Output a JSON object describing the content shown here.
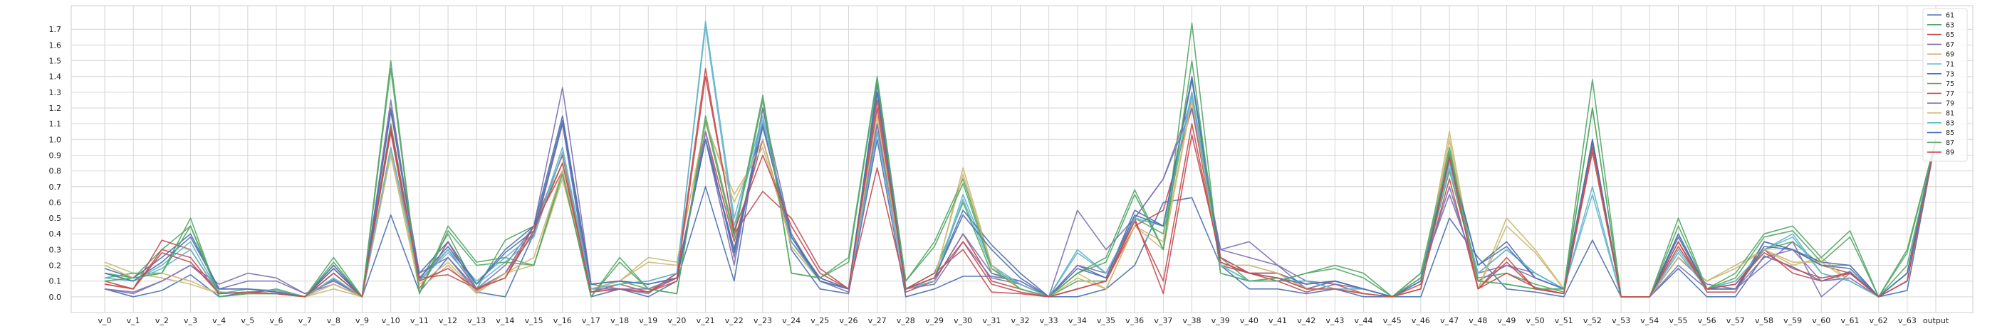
{
  "chart_data": {
    "type": "line",
    "title": "",
    "xlabel": "",
    "ylabel": "",
    "categories": [
      "v_0",
      "v_1",
      "v_2",
      "v_3",
      "v_4",
      "v_5",
      "v_6",
      "v_7",
      "v_8",
      "v_9",
      "v_10",
      "v_11",
      "v_12",
      "v_13",
      "v_14",
      "v_15",
      "v_16",
      "v_17",
      "v_18",
      "v_19",
      "v_20",
      "v_21",
      "v_22",
      "v_23",
      "v_24",
      "v_25",
      "v_26",
      "v_27",
      "v_28",
      "v_29",
      "v_30",
      "v_31",
      "v_32",
      "v_33",
      "v_34",
      "v_35",
      "v_36",
      "v_37",
      "v_38",
      "v_39",
      "v_40",
      "v_41",
      "v_42",
      "v_43",
      "v_44",
      "v_45",
      "v_46",
      "v_47",
      "v_48",
      "v_49",
      "v_50",
      "v_51",
      "v_52",
      "v_53",
      "v_54",
      "v_55",
      "v_56",
      "v_57",
      "v_58",
      "v_59",
      "v_60",
      "v_61",
      "v_62",
      "v_63",
      "output"
    ],
    "yticks": [
      0.0,
      0.1,
      0.2,
      0.3,
      0.4,
      0.5,
      0.6,
      0.7,
      0.8,
      0.9,
      1.0,
      1.1,
      1.2,
      1.3,
      1.4,
      1.5,
      1.6,
      1.7
    ],
    "ytick_labels": [
      "0.0",
      "0.1",
      "0.2",
      "0.3",
      "0.4",
      "0.5",
      "0.6",
      "0.7",
      "0.8",
      "0.9",
      "1.0",
      "1.1",
      "1.2",
      "1.3",
      "1.4",
      "1.5",
      "1.6",
      "1.7"
    ],
    "ylim": [
      -0.1,
      1.85
    ],
    "grid": true,
    "legend_position": "top-right",
    "series": [
      {
        "name": "61",
        "color": "#4c72b0",
        "values": [
          0.05,
          0.0,
          0.04,
          0.14,
          0.0,
          0.03,
          0.02,
          0.0,
          0.11,
          0.0,
          0.52,
          0.03,
          0.25,
          0.03,
          0.0,
          0.4,
          1.1,
          0.0,
          0.05,
          0.0,
          0.1,
          0.7,
          0.1,
          1.2,
          0.3,
          0.05,
          0.02,
          1.0,
          0.0,
          0.05,
          0.13,
          0.13,
          0.1,
          0.0,
          0.0,
          0.05,
          0.2,
          0.6,
          0.63,
          0.2,
          0.05,
          0.05,
          0.02,
          0.05,
          0.0,
          0.0,
          0.0,
          0.5,
          0.25,
          0.05,
          0.03,
          0.0,
          0.36,
          0.0,
          0.0,
          0.18,
          0.0,
          0.0,
          0.26,
          0.19,
          0.1,
          0.16,
          0.0,
          0.04,
          1.0
        ]
      },
      {
        "name": "63",
        "color": "#55a868",
        "values": [
          0.15,
          0.12,
          0.3,
          0.45,
          0.03,
          0.02,
          0.05,
          0.0,
          0.2,
          0.0,
          1.1,
          0.1,
          0.4,
          0.05,
          0.36,
          0.45,
          0.85,
          0.05,
          0.1,
          0.05,
          0.12,
          1.0,
          0.3,
          1.1,
          0.4,
          0.1,
          0.05,
          1.3,
          0.05,
          0.15,
          0.6,
          0.15,
          0.08,
          0.0,
          0.1,
          0.1,
          0.5,
          0.4,
          1.3,
          0.25,
          0.1,
          0.12,
          0.05,
          0.1,
          0.05,
          0.0,
          0.1,
          0.8,
          0.12,
          0.15,
          0.08,
          0.03,
          1.2,
          0.0,
          0.0,
          0.4,
          0.05,
          0.05,
          0.3,
          0.35,
          0.2,
          0.2,
          0.0,
          0.2,
          1.0
        ]
      },
      {
        "name": "65",
        "color": "#c44e52",
        "values": [
          0.1,
          0.05,
          0.36,
          0.3,
          0.02,
          0.03,
          0.04,
          0.0,
          0.15,
          0.0,
          1.05,
          0.05,
          0.35,
          0.04,
          0.15,
          0.45,
          0.9,
          0.03,
          0.08,
          0.03,
          0.1,
          1.05,
          0.35,
          1.0,
          0.35,
          0.12,
          0.05,
          1.2,
          0.03,
          0.1,
          0.4,
          0.1,
          0.05,
          0.0,
          0.05,
          0.1,
          0.45,
          0.55,
          1.2,
          0.2,
          0.15,
          0.1,
          0.03,
          0.08,
          0.02,
          0.0,
          0.08,
          0.75,
          0.05,
          0.15,
          0.06,
          0.02,
          1.0,
          0.0,
          0.0,
          0.35,
          0.03,
          0.03,
          0.35,
          0.3,
          0.2,
          0.15,
          0.0,
          0.1,
          1.0
        ]
      },
      {
        "name": "67",
        "color": "#8172b2",
        "values": [
          0.05,
          0.02,
          0.1,
          0.2,
          0.08,
          0.15,
          0.12,
          0.02,
          0.1,
          0.0,
          1.25,
          0.1,
          0.3,
          0.05,
          0.2,
          0.45,
          1.33,
          0.08,
          0.05,
          0.02,
          0.15,
          1.0,
          0.2,
          1.2,
          0.4,
          0.1,
          0.03,
          1.05,
          0.05,
          0.1,
          0.4,
          0.15,
          0.1,
          0.0,
          0.55,
          0.3,
          0.5,
          0.75,
          1.25,
          0.3,
          0.35,
          0.2,
          0.05,
          0.1,
          0.05,
          0.0,
          0.15,
          0.65,
          0.15,
          0.2,
          0.15,
          0.05,
          0.95,
          0.0,
          0.0,
          0.2,
          0.05,
          0.05,
          0.2,
          0.35,
          0.0,
          0.15,
          0.0,
          0.1,
          1.0
        ]
      },
      {
        "name": "69",
        "color": "#ccb974",
        "values": [
          0.22,
          0.15,
          0.12,
          0.08,
          0.02,
          0.03,
          0.02,
          0.0,
          0.05,
          0.0,
          0.9,
          0.05,
          0.2,
          0.02,
          0.15,
          0.2,
          0.75,
          0.05,
          0.1,
          0.25,
          0.22,
          1.1,
          0.65,
          0.95,
          0.35,
          0.1,
          0.05,
          1.1,
          0.05,
          0.1,
          0.82,
          0.2,
          0.05,
          0.0,
          0.15,
          0.05,
          0.45,
          0.3,
          1.25,
          0.2,
          0.2,
          0.15,
          0.05,
          0.05,
          0.02,
          0.0,
          0.05,
          1.05,
          0.05,
          0.5,
          0.3,
          0.05,
          0.95,
          0.0,
          0.0,
          0.25,
          0.1,
          0.2,
          0.3,
          0.2,
          0.25,
          0.1,
          0.0,
          0.15,
          1.0
        ]
      },
      {
        "name": "71",
        "color": "#64b5cd",
        "values": [
          0.15,
          0.1,
          0.2,
          0.35,
          0.02,
          0.05,
          0.04,
          0.0,
          0.15,
          0.0,
          0.95,
          0.12,
          0.3,
          0.1,
          0.25,
          0.4,
          0.95,
          0.05,
          0.08,
          0.1,
          0.15,
          1.75,
          0.5,
          1.15,
          0.35,
          0.1,
          0.05,
          1.1,
          0.05,
          0.1,
          0.65,
          0.2,
          0.08,
          0.0,
          0.3,
          0.15,
          0.5,
          0.45,
          1.3,
          0.2,
          0.1,
          0.1,
          0.1,
          0.05,
          0.05,
          0.0,
          0.1,
          0.85,
          0.15,
          0.3,
          0.15,
          0.05,
          0.65,
          0.0,
          0.0,
          0.3,
          0.05,
          0.1,
          0.3,
          0.4,
          0.15,
          0.1,
          0.0,
          0.15,
          1.0
        ]
      },
      {
        "name": "73",
        "color": "#4c72b0",
        "values": [
          0.18,
          0.12,
          0.25,
          0.4,
          0.05,
          0.05,
          0.03,
          0.0,
          0.2,
          0.0,
          1.2,
          0.15,
          0.35,
          0.08,
          0.3,
          0.45,
          1.15,
          0.08,
          0.1,
          0.08,
          0.12,
          1.0,
          0.3,
          1.1,
          0.38,
          0.12,
          0.05,
          1.35,
          0.05,
          0.12,
          0.55,
          0.33,
          0.15,
          0.0,
          0.2,
          0.12,
          0.55,
          0.45,
          1.4,
          0.25,
          0.15,
          0.15,
          0.08,
          0.1,
          0.05,
          0.0,
          0.1,
          0.9,
          0.2,
          0.35,
          0.12,
          0.05,
          1.0,
          0.0,
          0.0,
          0.4,
          0.05,
          0.05,
          0.35,
          0.3,
          0.22,
          0.2,
          0.0,
          0.15,
          1.0
        ]
      },
      {
        "name": "75",
        "color": "#55a868",
        "values": [
          0.12,
          0.15,
          0.15,
          0.5,
          0.0,
          0.02,
          0.02,
          0.0,
          0.25,
          0.0,
          1.5,
          0.02,
          0.45,
          0.22,
          0.25,
          0.2,
          0.8,
          0.0,
          0.25,
          0.05,
          0.02,
          1.15,
          0.4,
          1.28,
          0.15,
          0.12,
          0.25,
          1.4,
          0.1,
          0.35,
          0.75,
          0.2,
          0.05,
          0.0,
          0.15,
          0.25,
          0.68,
          0.3,
          1.74,
          0.15,
          0.1,
          0.1,
          0.15,
          0.2,
          0.15,
          0.0,
          0.15,
          0.95,
          0.1,
          0.08,
          0.05,
          0.05,
          1.38,
          0.0,
          0.0,
          0.5,
          0.05,
          0.15,
          0.4,
          0.45,
          0.25,
          0.42,
          0.0,
          0.3,
          1.0
        ]
      },
      {
        "name": "77",
        "color": "#c44e52",
        "values": [
          0.08,
          0.05,
          0.3,
          0.25,
          0.02,
          0.03,
          0.02,
          0.0,
          0.18,
          0.0,
          1.05,
          0.12,
          0.14,
          0.05,
          0.12,
          0.45,
          0.8,
          0.03,
          0.05,
          0.03,
          0.15,
          1.45,
          0.4,
          0.67,
          0.5,
          0.18,
          0.05,
          0.82,
          0.05,
          0.15,
          0.3,
          0.03,
          0.02,
          0.0,
          0.05,
          0.1,
          0.5,
          0.02,
          1.03,
          0.25,
          0.15,
          0.15,
          0.05,
          0.05,
          0.02,
          0.0,
          0.05,
          0.9,
          0.05,
          0.25,
          0.05,
          0.02,
          0.92,
          0.0,
          0.0,
          0.35,
          0.05,
          0.08,
          0.3,
          0.15,
          0.1,
          0.15,
          0.0,
          0.1,
          1.0
        ]
      },
      {
        "name": "79",
        "color": "#8172b2",
        "values": [
          0.05,
          0.03,
          0.1,
          0.2,
          0.05,
          0.1,
          0.1,
          0.02,
          0.08,
          0.0,
          1.2,
          0.15,
          0.25,
          0.05,
          0.15,
          0.4,
          1.1,
          0.05,
          0.05,
          0.05,
          0.12,
          1.05,
          0.25,
          1.1,
          0.35,
          0.1,
          0.05,
          1.1,
          0.05,
          0.08,
          0.35,
          0.12,
          0.08,
          0.0,
          0.2,
          0.15,
          0.5,
          0.75,
          1.2,
          0.3,
          0.25,
          0.2,
          0.1,
          0.08,
          0.05,
          0.0,
          0.12,
          0.7,
          0.1,
          0.2,
          0.12,
          0.05,
          0.95,
          0.0,
          0.0,
          0.25,
          0.08,
          0.05,
          0.25,
          0.3,
          0.1,
          0.12,
          0.0,
          0.1,
          1.0
        ]
      },
      {
        "name": "81",
        "color": "#ccb974",
        "values": [
          0.2,
          0.12,
          0.15,
          0.1,
          0.02,
          0.03,
          0.02,
          0.0,
          0.08,
          0.0,
          0.92,
          0.08,
          0.22,
          0.03,
          0.15,
          0.25,
          0.8,
          0.05,
          0.1,
          0.22,
          0.2,
          1.12,
          0.6,
          1.0,
          0.32,
          0.1,
          0.05,
          1.15,
          0.05,
          0.12,
          0.78,
          0.2,
          0.05,
          0.0,
          0.12,
          0.05,
          0.45,
          0.35,
          1.25,
          0.2,
          0.2,
          0.15,
          0.05,
          0.05,
          0.02,
          0.0,
          0.05,
          1.0,
          0.05,
          0.45,
          0.28,
          0.05,
          0.95,
          0.0,
          0.0,
          0.25,
          0.1,
          0.18,
          0.3,
          0.22,
          0.22,
          0.1,
          0.0,
          0.15,
          1.0
        ]
      },
      {
        "name": "83",
        "color": "#64b5cd",
        "values": [
          0.12,
          0.1,
          0.18,
          0.3,
          0.02,
          0.05,
          0.03,
          0.0,
          0.12,
          0.0,
          0.95,
          0.1,
          0.28,
          0.08,
          0.22,
          0.38,
          0.92,
          0.05,
          0.08,
          0.1,
          0.15,
          1.72,
          0.45,
          1.12,
          0.35,
          0.1,
          0.05,
          1.05,
          0.05,
          0.1,
          0.62,
          0.18,
          0.08,
          0.0,
          0.28,
          0.15,
          0.5,
          0.45,
          1.28,
          0.2,
          0.1,
          0.1,
          0.1,
          0.05,
          0.05,
          0.0,
          0.1,
          0.82,
          0.15,
          0.3,
          0.15,
          0.05,
          0.7,
          0.0,
          0.0,
          0.28,
          0.05,
          0.1,
          0.3,
          0.38,
          0.15,
          0.1,
          0.0,
          0.15,
          1.0
        ]
      },
      {
        "name": "85",
        "color": "#4c72b0",
        "values": [
          0.15,
          0.1,
          0.22,
          0.38,
          0.05,
          0.05,
          0.03,
          0.0,
          0.18,
          0.0,
          1.18,
          0.12,
          0.32,
          0.08,
          0.28,
          0.42,
          1.12,
          0.08,
          0.1,
          0.08,
          0.12,
          1.0,
          0.28,
          1.08,
          0.38,
          0.1,
          0.05,
          1.3,
          0.05,
          0.12,
          0.52,
          0.3,
          0.12,
          0.0,
          0.18,
          0.12,
          0.52,
          0.45,
          1.38,
          0.22,
          0.15,
          0.12,
          0.08,
          0.1,
          0.05,
          0.0,
          0.1,
          0.88,
          0.2,
          0.32,
          0.12,
          0.05,
          0.98,
          0.0,
          0.0,
          0.38,
          0.05,
          0.05,
          0.32,
          0.3,
          0.2,
          0.18,
          0.0,
          0.15,
          1.0
        ]
      },
      {
        "name": "87",
        "color": "#55a868",
        "values": [
          0.1,
          0.12,
          0.15,
          0.45,
          0.0,
          0.02,
          0.02,
          0.0,
          0.22,
          0.0,
          1.45,
          0.02,
          0.42,
          0.2,
          0.22,
          0.2,
          0.78,
          0.0,
          0.22,
          0.05,
          0.02,
          1.12,
          0.38,
          1.25,
          0.15,
          0.12,
          0.22,
          1.38,
          0.1,
          0.32,
          0.72,
          0.18,
          0.05,
          0.0,
          0.15,
          0.22,
          0.65,
          0.3,
          1.5,
          0.15,
          0.1,
          0.1,
          0.15,
          0.18,
          0.12,
          0.0,
          0.12,
          0.92,
          0.1,
          0.08,
          0.05,
          0.05,
          1.2,
          0.0,
          0.0,
          0.45,
          0.05,
          0.12,
          0.38,
          0.42,
          0.22,
          0.38,
          0.0,
          0.28,
          1.0
        ]
      },
      {
        "name": "89",
        "color": "#c44e52",
        "values": [
          0.08,
          0.05,
          0.28,
          0.22,
          0.02,
          0.03,
          0.02,
          0.0,
          0.15,
          0.0,
          1.08,
          0.1,
          0.18,
          0.05,
          0.12,
          0.42,
          0.85,
          0.03,
          0.05,
          0.03,
          0.12,
          1.4,
          0.42,
          0.9,
          0.45,
          0.15,
          0.05,
          1.25,
          0.05,
          0.12,
          0.35,
          0.08,
          0.03,
          0.0,
          0.05,
          0.1,
          0.48,
          0.1,
          1.1,
          0.22,
          0.15,
          0.12,
          0.05,
          0.05,
          0.02,
          0.0,
          0.05,
          0.88,
          0.05,
          0.22,
          0.05,
          0.02,
          0.95,
          0.0,
          0.0,
          0.32,
          0.05,
          0.08,
          0.28,
          0.18,
          0.12,
          0.15,
          0.0,
          0.1,
          1.0
        ]
      }
    ]
  }
}
